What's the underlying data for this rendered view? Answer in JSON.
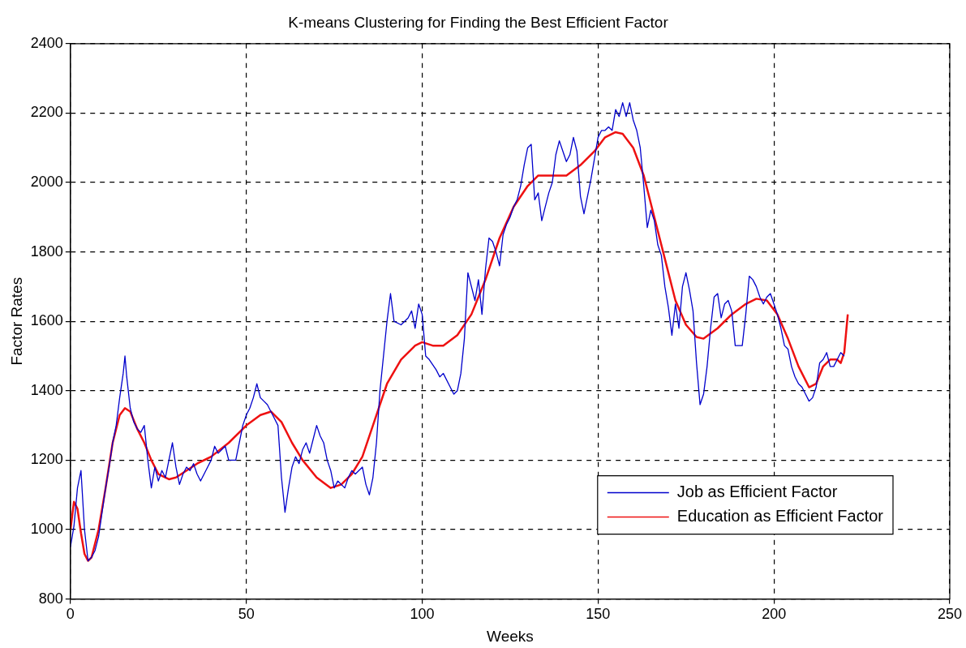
{
  "chart_data": {
    "type": "line",
    "title": "K-means Clustering for Finding the Best Efficient Factor",
    "xlabel": "Weeks",
    "ylabel": "Factor Rates",
    "xlim": [
      0,
      250
    ],
    "xticks": [
      0,
      50,
      100,
      150,
      200,
      250
    ],
    "ylim": [
      800,
      2400
    ],
    "yticks": [
      800,
      1000,
      1200,
      1400,
      1600,
      1800,
      2000,
      2200,
      2400
    ],
    "grid": true,
    "legend": "bottom right",
    "marker": "none",
    "line_style": "solid",
    "series": [
      {
        "name": "Job as Efficient Factor",
        "color": "#0000cc",
        "x": [
          0,
          1,
          2,
          3,
          4,
          5,
          6,
          7,
          8,
          9,
          10,
          11,
          12,
          13,
          14,
          15,
          15.5,
          16,
          17,
          18,
          19,
          20,
          21,
          22,
          23,
          24,
          25,
          26,
          27,
          28,
          29,
          30,
          31,
          32,
          33,
          34,
          35,
          36,
          37,
          38,
          40,
          41,
          42,
          44,
          45,
          47,
          48,
          49,
          50,
          51,
          52,
          53,
          54,
          55,
          56,
          57,
          58,
          59,
          60,
          61,
          62,
          63,
          64,
          65,
          66,
          67,
          68,
          69,
          70,
          71,
          72,
          73,
          74,
          75,
          76,
          77,
          78,
          79,
          80,
          81,
          82,
          83,
          84,
          85,
          86,
          87,
          88,
          89,
          90,
          91,
          92,
          94,
          96,
          97,
          98,
          99,
          100,
          101,
          102,
          104,
          105,
          106,
          108,
          109,
          110,
          111,
          112,
          113,
          114,
          115,
          116,
          117,
          118,
          119,
          120,
          121,
          122,
          123,
          124,
          125,
          126,
          127,
          128,
          129,
          130,
          131,
          132,
          133,
          134,
          135,
          136,
          137,
          138,
          139,
          140,
          141,
          142,
          143,
          144,
          145,
          146,
          147,
          148,
          149,
          150,
          151,
          152,
          153,
          154,
          155,
          156,
          157,
          158,
          159,
          160,
          161,
          162,
          163,
          164,
          165,
          166,
          167,
          168,
          169,
          170,
          171,
          172,
          173,
          174,
          175,
          176,
          177,
          178,
          179,
          180,
          181,
          182,
          183,
          184,
          185,
          186,
          187,
          188,
          189,
          190,
          191,
          192,
          193,
          194,
          195,
          196,
          197,
          198,
          199,
          200,
          201,
          202,
          203,
          204,
          205,
          206,
          207,
          208,
          209,
          210,
          211,
          212,
          213,
          214,
          215,
          216,
          217,
          218,
          219,
          220
        ],
        "values": [
          950,
          1010,
          1120,
          1170,
          1000,
          910,
          920,
          940,
          980,
          1050,
          1120,
          1180,
          1250,
          1300,
          1380,
          1450,
          1500,
          1440,
          1350,
          1310,
          1290,
          1280,
          1300,
          1200,
          1120,
          1180,
          1140,
          1170,
          1150,
          1200,
          1250,
          1180,
          1130,
          1160,
          1180,
          1170,
          1190,
          1160,
          1140,
          1160,
          1200,
          1240,
          1220,
          1240,
          1200,
          1200,
          1250,
          1300,
          1330,
          1350,
          1380,
          1420,
          1380,
          1370,
          1360,
          1340,
          1320,
          1300,
          1150,
          1050,
          1120,
          1180,
          1210,
          1190,
          1230,
          1250,
          1220,
          1260,
          1300,
          1270,
          1250,
          1200,
          1170,
          1120,
          1140,
          1130,
          1120,
          1150,
          1170,
          1160,
          1170,
          1180,
          1130,
          1100,
          1150,
          1250,
          1400,
          1500,
          1600,
          1680,
          1600,
          1590,
          1610,
          1630,
          1580,
          1650,
          1620,
          1500,
          1490,
          1460,
          1440,
          1450,
          1410,
          1390,
          1400,
          1450,
          1550,
          1740,
          1700,
          1660,
          1720,
          1620,
          1750,
          1840,
          1830,
          1800,
          1760,
          1850,
          1880,
          1900,
          1930,
          1950,
          1990,
          2050,
          2100,
          2110,
          1950,
          1970,
          1890,
          1930,
          1970,
          2000,
          2080,
          2120,
          2090,
          2060,
          2080,
          2130,
          2090,
          1960,
          1910,
          1960,
          2010,
          2070,
          2130,
          2150,
          2150,
          2160,
          2150,
          2210,
          2190,
          2230,
          2190,
          2230,
          2180,
          2150,
          2100,
          1990,
          1870,
          1920,
          1890,
          1820,
          1790,
          1700,
          1640,
          1560,
          1650,
          1580,
          1700,
          1740,
          1690,
          1630,
          1480,
          1360,
          1390,
          1470,
          1580,
          1670,
          1680,
          1610,
          1650,
          1660,
          1630,
          1530,
          1530,
          1530,
          1620,
          1730,
          1720,
          1700,
          1670,
          1650,
          1670,
          1680,
          1650,
          1620,
          1580,
          1530,
          1520,
          1470,
          1440,
          1420,
          1410,
          1390,
          1370,
          1380,
          1410,
          1480,
          1490,
          1510,
          1470,
          1470,
          1490,
          1510,
          1500
        ]
      },
      {
        "name": "Education as Efficient Factor",
        "color": "#ee1111",
        "x": [
          0,
          1,
          2,
          3,
          4,
          5,
          6,
          8,
          10,
          12,
          14,
          15.5,
          17,
          19,
          21,
          23,
          25,
          28,
          30,
          33,
          36,
          40,
          45,
          50,
          54,
          57,
          60,
          63,
          66,
          70,
          74,
          77,
          80,
          83,
          86,
          90,
          94,
          98,
          100,
          103,
          106,
          110,
          114,
          118,
          122,
          126,
          130,
          133,
          137,
          141,
          145,
          149,
          152,
          155,
          157,
          160,
          163,
          166,
          169,
          172,
          175,
          178,
          180,
          184,
          188,
          192,
          195,
          198,
          201,
          204,
          207,
          210,
          212,
          214,
          216,
          218,
          219,
          220,
          221
        ],
        "values": [
          1000,
          1080,
          1060,
          990,
          930,
          910,
          920,
          1000,
          1120,
          1250,
          1330,
          1350,
          1340,
          1290,
          1250,
          1200,
          1160,
          1145,
          1150,
          1170,
          1190,
          1210,
          1250,
          1300,
          1330,
          1340,
          1310,
          1250,
          1200,
          1150,
          1120,
          1130,
          1160,
          1210,
          1300,
          1420,
          1490,
          1530,
          1540,
          1530,
          1530,
          1560,
          1620,
          1720,
          1840,
          1930,
          1990,
          2020,
          2020,
          2020,
          2050,
          2090,
          2130,
          2145,
          2140,
          2100,
          2020,
          1900,
          1780,
          1660,
          1590,
          1555,
          1550,
          1580,
          1620,
          1650,
          1665,
          1660,
          1620,
          1550,
          1470,
          1410,
          1420,
          1470,
          1490,
          1490,
          1480,
          1510,
          1620
        ]
      }
    ]
  }
}
